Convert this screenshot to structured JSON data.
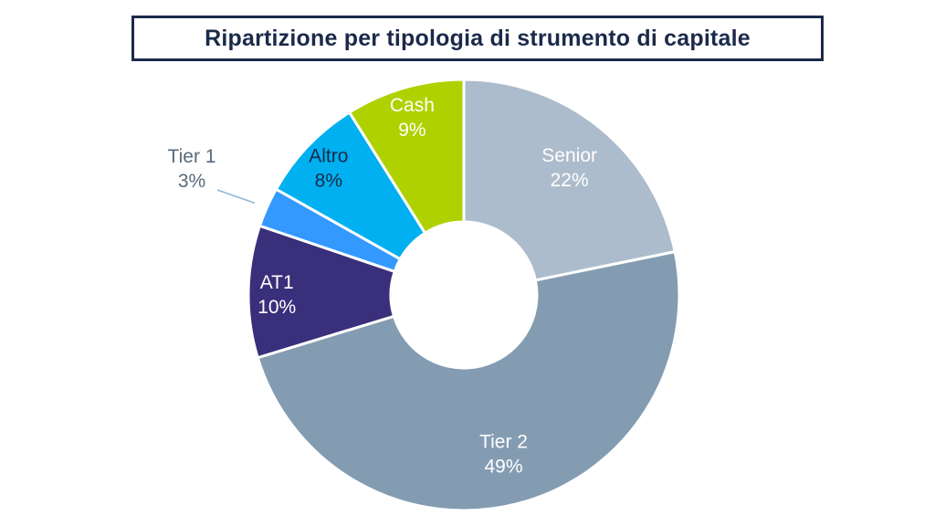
{
  "chart_data": {
    "type": "pie",
    "title": "Ripartizione per tipologia di strumento di capitale",
    "donut": true,
    "slices": [
      {
        "name": "Senior",
        "value": 22,
        "label": "22%",
        "color": "#adbccc",
        "text_color": "#ffffff"
      },
      {
        "name": "Tier 2",
        "value": 49,
        "label": "49%",
        "color": "#849cb2",
        "text_color": "#ffffff"
      },
      {
        "name": "AT1",
        "value": 10,
        "label": "10%",
        "color": "#3a2f7a",
        "text_color": "#ffffff"
      },
      {
        "name": "Tier 1",
        "value": 3,
        "label": "3%",
        "color": "#3399ff",
        "text_color": "#5a6a7a"
      },
      {
        "name": "Altro",
        "value": 8,
        "label": "8%",
        "color": "#00b0f0",
        "text_color": "#1b2a4a"
      },
      {
        "name": "Cash",
        "value": 9,
        "label": "9%",
        "color": "#b0d100",
        "text_color": "#ffffff"
      }
    ]
  }
}
